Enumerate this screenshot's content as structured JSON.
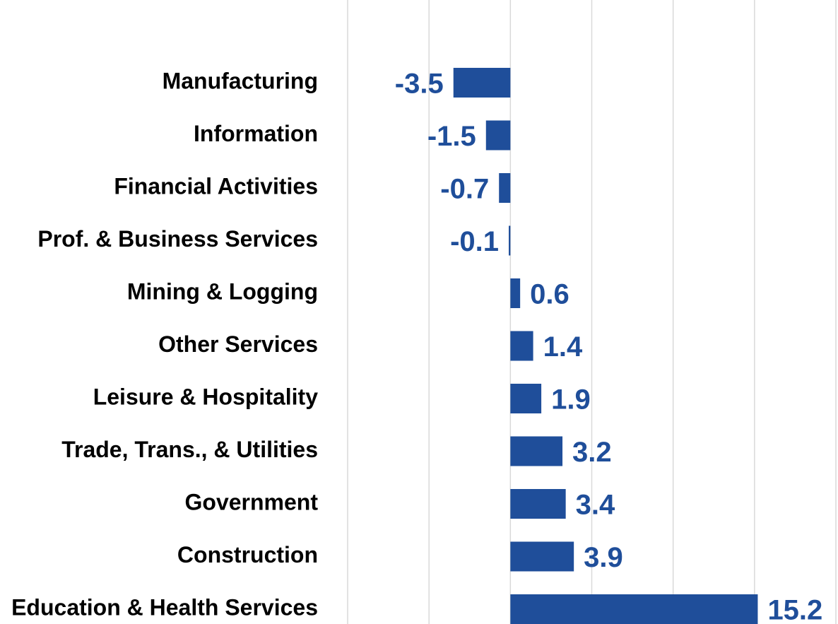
{
  "chart_data": {
    "type": "bar",
    "orientation": "horizontal",
    "categories": [
      "Manufacturing",
      "Information",
      "Financial Activities",
      "Prof. & Business Services",
      "Mining & Logging",
      "Other Services",
      "Leisure & Hospitality",
      "Trade, Trans., & Utilities",
      "Government",
      "Construction",
      "Education & Health Services"
    ],
    "values": [
      -3.5,
      -1.5,
      -0.7,
      -0.1,
      0.6,
      1.4,
      1.9,
      3.2,
      3.4,
      3.9,
      15.2
    ],
    "color": "#1f4e9a",
    "xlim": [
      -10,
      20
    ],
    "xticks": [
      -10,
      -5,
      0,
      5,
      10,
      15,
      20
    ],
    "grid": true
  }
}
